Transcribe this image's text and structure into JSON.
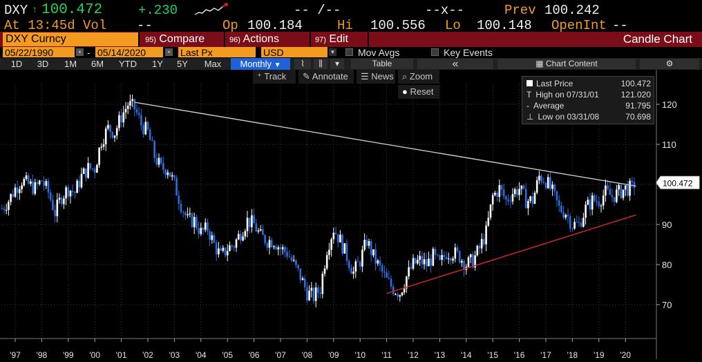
{
  "quote": {
    "ticker": "DXY",
    "price": "100.472",
    "change": "+.230",
    "time_label": "At 13:45d Vol",
    "vol": "--",
    "bid_ask_1": "-- /--",
    "bid_ask_2": "--x--",
    "prev_label": "Prev",
    "prev": "100.242",
    "op_label": "Op",
    "op": "100.184",
    "hi_label": "Hi",
    "hi": "100.556",
    "lo_label": "Lo",
    "lo": "100.148",
    "oi_label": "OpenInt",
    "oi": "--"
  },
  "cmdbar": {
    "security": "DXY Curncy",
    "compare_num": "95)",
    "compare": "Compare",
    "actions_num": "96)",
    "actions": "Actions",
    "edit_num": "97)",
    "edit": "Edit",
    "chart_type": "Candle Chart"
  },
  "daterow": {
    "start": "05/22/1990",
    "dash": "-",
    "end": "05/14/2020",
    "field": "Last Px",
    "currency": "USD",
    "mov_avgs": "Mov Avgs",
    "key_events": "Key Events"
  },
  "periods": [
    "1D",
    "3D",
    "1M",
    "6M",
    "YTD",
    "1Y",
    "5Y",
    "Max"
  ],
  "frequency": "Monthly",
  "toolbar": {
    "table": "Table",
    "collapse": "«",
    "chart_content": "Chart Content",
    "track": "Track",
    "annotate": "Annotate",
    "news": "News",
    "zoom": "Zoom",
    "reset": "Reset"
  },
  "legend": {
    "last_label": "Last Price",
    "last": "100.472",
    "high_label": "High on 07/31/01",
    "high": "121.020",
    "avg_label": "Average",
    "avg": "91.795",
    "low_label": "Low on 03/31/08",
    "low": "70.698"
  },
  "colors": {
    "accent": "#f29b20",
    "bar": "#7a0d17",
    "up": "#ffffff",
    "down": "#2a6ee0",
    "trend_upper": "#c8c8c8",
    "trend_lower": "#c0282a",
    "selected": "#1f61d6"
  },
  "chart_data": {
    "type": "candlestick",
    "x_ticks": [
      "'97",
      "'98",
      "'99",
      "'00",
      "'01",
      "'02",
      "'03",
      "'04",
      "'05",
      "'06",
      "'07",
      "'08",
      "'09",
      "'10",
      "'11",
      "'12",
      "'13",
      "'14",
      "'15",
      "'16",
      "'17",
      "'18",
      "'19",
      "'20"
    ],
    "y_ticks": [
      "120",
      "110",
      "100",
      "90",
      "80",
      "70"
    ],
    "ylim": [
      60,
      125
    ],
    "last_price_tag": "100.472",
    "x": [
      1996.5,
      1996.75,
      1997.0,
      1997.25,
      1997.5,
      1997.75,
      1998.0,
      1998.25,
      1998.5,
      1998.75,
      1999.0,
      1999.25,
      1999.5,
      1999.75,
      2000.0,
      2000.25,
      2000.5,
      2000.75,
      2001.0,
      2001.25,
      2001.5,
      2001.75,
      2002.0,
      2002.25,
      2002.5,
      2002.75,
      2003.0,
      2003.25,
      2003.5,
      2003.75,
      2004.0,
      2004.25,
      2004.5,
      2004.75,
      2005.0,
      2005.25,
      2005.5,
      2005.75,
      2006.0,
      2006.25,
      2006.5,
      2006.75,
      2007.0,
      2007.25,
      2007.5,
      2007.75,
      2008.0,
      2008.25,
      2008.5,
      2008.75,
      2009.0,
      2009.25,
      2009.5,
      2009.75,
      2010.0,
      2010.25,
      2010.5,
      2010.75,
      2011.0,
      2011.25,
      2011.5,
      2011.75,
      2012.0,
      2012.25,
      2012.5,
      2012.75,
      2013.0,
      2013.25,
      2013.5,
      2013.75,
      2014.0,
      2014.25,
      2014.5,
      2014.75,
      2015.0,
      2015.25,
      2015.5,
      2015.75,
      2016.0,
      2016.25,
      2016.5,
      2016.75,
      2017.0,
      2017.25,
      2017.5,
      2017.75,
      2018.0,
      2018.25,
      2018.5,
      2018.75,
      2019.0,
      2019.25,
      2019.5,
      2019.75,
      2020.0,
      2020.25,
      2020.37
    ],
    "close": [
      94,
      96,
      99,
      101,
      100,
      99,
      101,
      98,
      93,
      97,
      99,
      98,
      102,
      104,
      104,
      111,
      114,
      113,
      117,
      120,
      119,
      115,
      113,
      107,
      104,
      104,
      100,
      95,
      91,
      91,
      88,
      89,
      85,
      82,
      84,
      85,
      88,
      91,
      90,
      87,
      86,
      86,
      84,
      83,
      80,
      77,
      73,
      72,
      74,
      84,
      89,
      86,
      82,
      78,
      81,
      86,
      82,
      79,
      76,
      74,
      73,
      77,
      80,
      81,
      80,
      82,
      80,
      83,
      83,
      82,
      80,
      81,
      84,
      88,
      97,
      99,
      96,
      98,
      99,
      96,
      96,
      102,
      101,
      98,
      94,
      93,
      90,
      90,
      94,
      96,
      96,
      98,
      97,
      98,
      99,
      99,
      100.5
    ],
    "trend_upper": [
      [
        2001.5,
        120.5
      ],
      [
        2020.4,
        99.6
      ]
    ],
    "trend_lower": [
      [
        2011.0,
        72.8
      ],
      [
        2020.4,
        92.4
      ]
    ]
  }
}
